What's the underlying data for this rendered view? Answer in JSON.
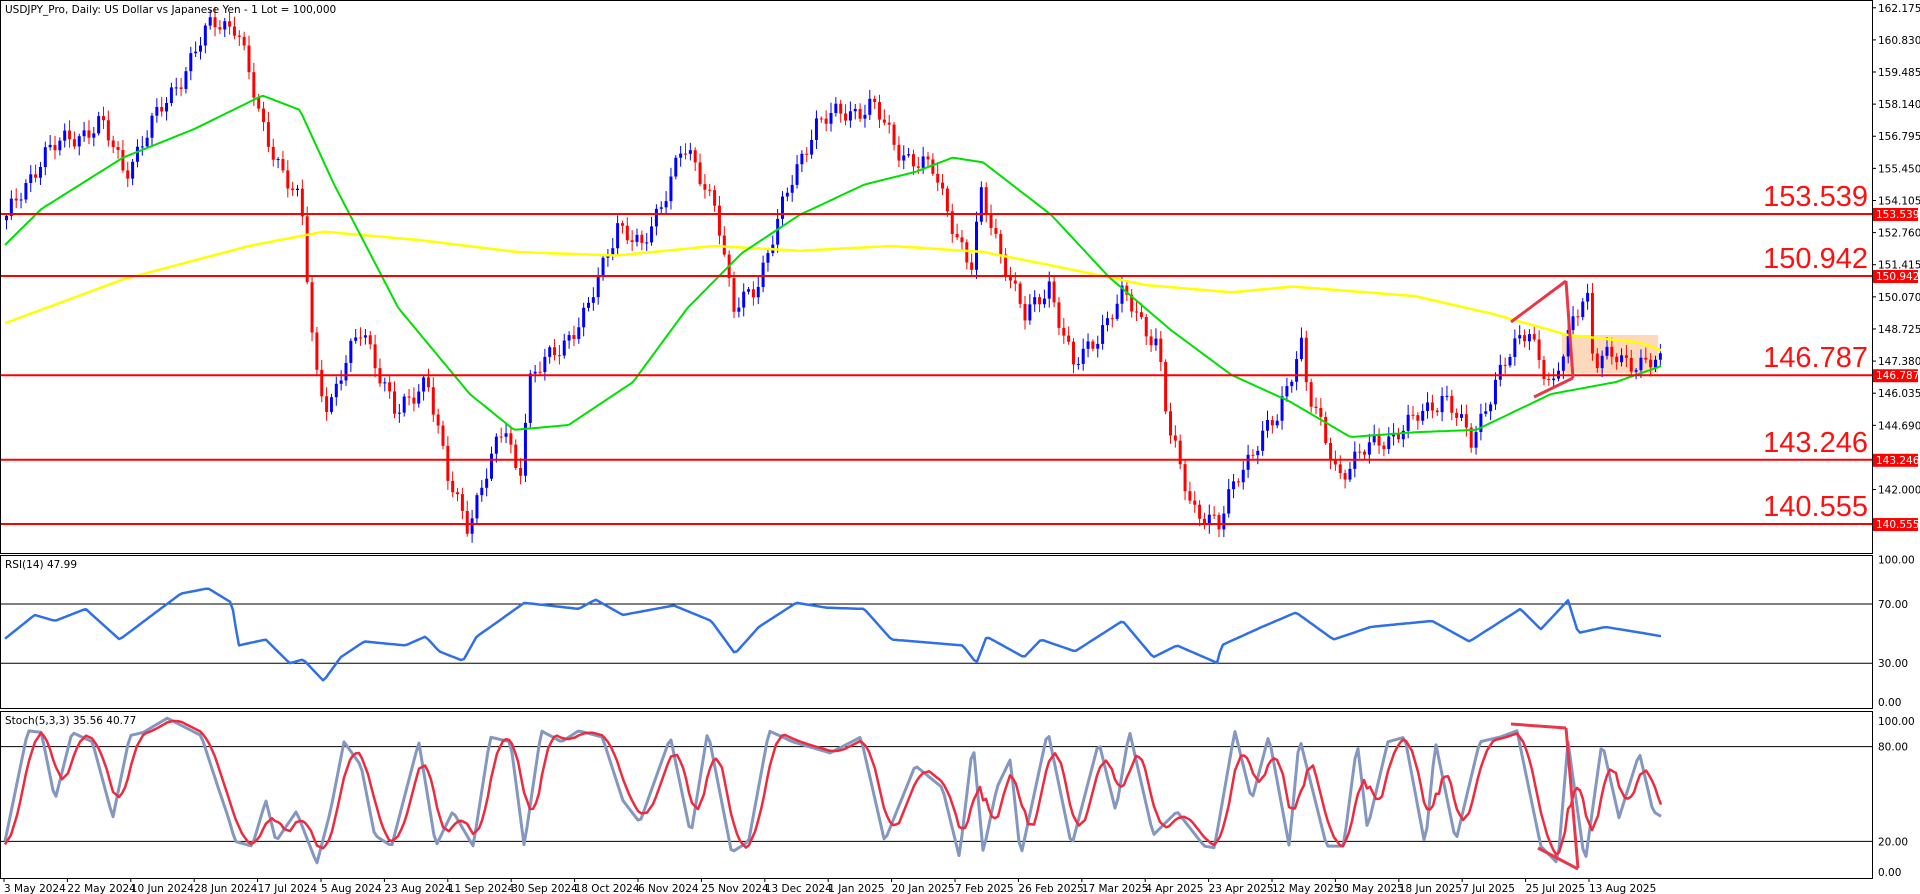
{
  "window": {
    "title": "USDJPY_Pro, Daily:  US Dollar vs Japanese Yen - 1 Lot = 100,000"
  },
  "colors": {
    "bull": "#0000ff",
    "bear": "#ff0000",
    "ma_fast": "#00e000",
    "ma_slow": "#ffff00",
    "rsi": "#2f6fe8",
    "stoch_main": "#8497c0",
    "stoch_signal": "#ee2a3f",
    "levels": "#ff0000",
    "zone": "#fcd2b0"
  },
  "chart_data": [
    {
      "type": "candlestick",
      "symbol": "USDJPY_Pro",
      "timeframe": "Daily",
      "y_ticks": [
        "162.175",
        "160.830",
        "159.485",
        "158.140",
        "156.795",
        "155.450",
        "154.105",
        "152.760",
        "151.415",
        "150.070",
        "148.725",
        "147.380",
        "146.035",
        "144.690",
        "142.000"
      ],
      "ylim": [
        139.4,
        162.5
      ],
      "close_path": [
        [
          "2024-05-03",
          153.2
        ],
        [
          "2024-05-14",
          156.06
        ],
        [
          "2024-05-31",
          157.35
        ],
        [
          "2024-06-07",
          155.3
        ],
        [
          "2024-06-24",
          159.4
        ],
        [
          "2024-07-03",
          161.57
        ],
        [
          "2024-07-10",
          161.47
        ],
        [
          "2024-07-17",
          157.35
        ],
        [
          "2024-07-29",
          153.75
        ],
        [
          "2024-08-02",
          147.05
        ],
        [
          "2024-08-06",
          145.5
        ],
        [
          "2024-08-16",
          148.85
        ],
        [
          "2024-08-26",
          145.0
        ],
        [
          "2024-09-04",
          146.8
        ],
        [
          "2024-09-10",
          142.4
        ],
        [
          "2024-09-16",
          140.6
        ],
        [
          "2024-09-27",
          144.7
        ],
        [
          "2024-10-01",
          142.4
        ],
        [
          "2024-10-04",
          146.5
        ],
        [
          "2024-10-21",
          149.35
        ],
        [
          "2024-10-30",
          153.2
        ],
        [
          "2024-11-06",
          151.95
        ],
        [
          "2024-11-18",
          156.3
        ],
        [
          "2024-11-28",
          154.0
        ],
        [
          "2024-12-03",
          149.35
        ],
        [
          "2024-12-10",
          150.65
        ],
        [
          "2024-12-20",
          154.77
        ],
        [
          "2024-12-27",
          157.35
        ],
        [
          "2025-01-13",
          158.12
        ],
        [
          "2025-01-20",
          156.3
        ],
        [
          "2025-01-31",
          155.28
        ],
        [
          "2025-02-11",
          151.16
        ],
        [
          "2025-02-14",
          154.25
        ],
        [
          "2025-02-27",
          149.1
        ],
        [
          "2025-03-06",
          150.65
        ],
        [
          "2025-03-13",
          147.05
        ],
        [
          "2025-03-28",
          150.13
        ],
        [
          "2025-04-07",
          148.07
        ],
        [
          "2025-04-10",
          144.46
        ],
        [
          "2025-04-17",
          141.37
        ],
        [
          "2025-04-25",
          140.35
        ],
        [
          "2025-04-30",
          142.66
        ],
        [
          "2025-05-12",
          144.98
        ],
        [
          "2025-05-19",
          148.32
        ],
        [
          "2025-05-21",
          146.0
        ],
        [
          "2025-05-30",
          142.66
        ],
        [
          "2025-06-10",
          143.95
        ],
        [
          "2025-06-20",
          144.7
        ],
        [
          "2025-06-30",
          146.0
        ],
        [
          "2025-07-08",
          143.95
        ],
        [
          "2025-07-15",
          146.5
        ],
        [
          "2025-07-25",
          148.85
        ],
        [
          "2025-08-01",
          146.0
        ],
        [
          "2025-08-07",
          149.1
        ],
        [
          "2025-08-11",
          150.65
        ],
        [
          "2025-08-13",
          147.3
        ],
        [
          "2025-08-20",
          147.55
        ],
        [
          "2025-08-27",
          147.3
        ],
        [
          "2025-09-03",
          147.19
        ]
      ],
      "ma_fast": [
        [
          "2024-05-03",
          152.2
        ],
        [
          "2024-05-14",
          153.75
        ],
        [
          "2024-06-07",
          155.9
        ],
        [
          "2024-06-28",
          157.1
        ],
        [
          "2024-07-18",
          158.5
        ],
        [
          "2024-07-29",
          157.9
        ],
        [
          "2024-08-08",
          154.8
        ],
        [
          "2024-08-27",
          149.6
        ],
        [
          "2024-09-17",
          146.0
        ],
        [
          "2024-09-30",
          144.5
        ],
        [
          "2024-10-16",
          144.7
        ],
        [
          "2024-11-04",
          146.5
        ],
        [
          "2024-11-20",
          149.6
        ],
        [
          "2024-12-06",
          151.9
        ],
        [
          "2024-12-23",
          153.5
        ],
        [
          "2025-01-11",
          154.77
        ],
        [
          "2025-01-26",
          155.3
        ],
        [
          "2025-02-06",
          155.9
        ],
        [
          "2025-02-15",
          155.7
        ],
        [
          "2025-03-07",
          153.5
        ],
        [
          "2025-03-24",
          150.9
        ],
        [
          "2025-04-11",
          148.7
        ],
        [
          "2025-04-29",
          146.8
        ],
        [
          "2025-05-16",
          145.7
        ],
        [
          "2025-06-03",
          144.2
        ],
        [
          "2025-06-22",
          144.4
        ],
        [
          "2025-07-10",
          144.5
        ],
        [
          "2025-08-01",
          146.0
        ],
        [
          "2025-08-20",
          146.5
        ],
        [
          "2025-09-03",
          147.2
        ]
      ],
      "ma_slow": [
        [
          "2024-05-03",
          148.95
        ],
        [
          "2024-06-07",
          150.8
        ],
        [
          "2024-07-14",
          152.2
        ],
        [
          "2024-08-05",
          152.8
        ],
        [
          "2024-09-02",
          152.45
        ],
        [
          "2024-10-01",
          151.95
        ],
        [
          "2024-10-30",
          151.8
        ],
        [
          "2024-11-28",
          152.2
        ],
        [
          "2024-12-23",
          152.0
        ],
        [
          "2025-01-19",
          152.2
        ],
        [
          "2025-02-15",
          151.95
        ],
        [
          "2025-03-10",
          151.3
        ],
        [
          "2025-04-04",
          150.56
        ],
        [
          "2025-04-29",
          150.26
        ],
        [
          "2025-05-17",
          150.5
        ],
        [
          "2025-06-22",
          150.1
        ],
        [
          "2025-07-15",
          149.35
        ],
        [
          "2025-08-06",
          148.47
        ],
        [
          "2025-08-27",
          148.16
        ],
        [
          "2025-09-03",
          147.8
        ]
      ],
      "levels": [
        {
          "price": "153.539",
          "label": "153.539"
        },
        {
          "price": "150.942",
          "label": "150.942"
        },
        {
          "price": "146.787",
          "label": "146.787"
        },
        {
          "price": "143.246",
          "label": "143.246"
        },
        {
          "price": "140.555",
          "label": "140.555"
        }
      ]
    },
    {
      "type": "line",
      "label": "RSI(14) 47.99",
      "y_ticks": [
        "100.00",
        "70.00",
        "30.00",
        "0.00"
      ],
      "levels": [
        70,
        30
      ],
      "ylim": [
        0,
        100
      ],
      "values": [
        [
          "2024-05-03",
          46
        ],
        [
          "2024-05-12",
          62.6
        ],
        [
          "2024-05-18",
          58.6
        ],
        [
          "2024-05-27",
          66.7
        ],
        [
          "2024-06-06",
          46
        ],
        [
          "2024-06-18",
          66.7
        ],
        [
          "2024-06-24",
          77
        ],
        [
          "2024-07-02",
          80.6
        ],
        [
          "2024-07-09",
          70.8
        ],
        [
          "2024-07-11",
          42
        ],
        [
          "2024-07-19",
          46
        ],
        [
          "2024-07-26",
          30
        ],
        [
          "2024-07-30",
          32.5
        ],
        [
          "2024-08-05",
          18
        ],
        [
          "2024-08-10",
          34
        ],
        [
          "2024-08-17",
          44.7
        ],
        [
          "2024-08-29",
          42
        ],
        [
          "2024-09-04",
          48
        ],
        [
          "2024-09-08",
          38
        ],
        [
          "2024-09-15",
          31.6
        ],
        [
          "2024-09-19",
          48
        ],
        [
          "2024-09-24",
          56
        ],
        [
          "2024-10-03",
          70.8
        ],
        [
          "2024-10-19",
          66.7
        ],
        [
          "2024-10-24",
          73
        ],
        [
          "2024-11-01",
          62.6
        ],
        [
          "2024-11-16",
          69
        ],
        [
          "2024-11-27",
          58.6
        ],
        [
          "2024-12-04",
          36.5
        ],
        [
          "2024-12-11",
          54.5
        ],
        [
          "2024-12-22",
          70.8
        ],
        [
          "2024-12-31",
          67.5
        ],
        [
          "2025-01-11",
          66.7
        ],
        [
          "2025-01-19",
          46
        ],
        [
          "2025-02-09",
          42
        ],
        [
          "2025-02-13",
          30
        ],
        [
          "2025-02-16",
          48
        ],
        [
          "2025-02-27",
          34
        ],
        [
          "2025-03-04",
          46
        ],
        [
          "2025-03-14",
          38
        ],
        [
          "2025-03-28",
          58.6
        ],
        [
          "2025-04-06",
          34
        ],
        [
          "2025-04-13",
          42
        ],
        [
          "2025-04-25",
          30
        ],
        [
          "2025-04-26",
          42
        ],
        [
          "2025-05-08",
          54.5
        ],
        [
          "2025-05-18",
          64.3
        ],
        [
          "2025-05-29",
          46
        ],
        [
          "2025-06-09",
          54.5
        ],
        [
          "2025-06-27",
          58.6
        ],
        [
          "2025-07-08",
          44.7
        ],
        [
          "2025-07-23",
          66.7
        ],
        [
          "2025-07-29",
          52.9
        ],
        [
          "2025-08-06",
          72.5
        ],
        [
          "2025-08-09",
          50.4
        ],
        [
          "2025-08-17",
          54.5
        ],
        [
          "2025-08-28",
          50.4
        ],
        [
          "2025-09-03",
          48
        ]
      ]
    },
    {
      "type": "line",
      "label": "Stoch(5,3,3) 35.56 40.77",
      "y_ticks": [
        "100.00",
        "80.00",
        "20.00",
        "0.00"
      ],
      "levels": [
        80,
        20
      ],
      "ylim": [
        0,
        100
      ],
      "main": [
        [
          "2024-05-03",
          17
        ],
        [
          "2024-05-10",
          90
        ],
        [
          "2024-05-14",
          89
        ],
        [
          "2024-05-18",
          46
        ],
        [
          "2024-05-23",
          89
        ],
        [
          "2024-05-29",
          83
        ],
        [
          "2024-06-04",
          35
        ],
        [
          "2024-06-09",
          87
        ],
        [
          "2024-06-13",
          89
        ],
        [
          "2024-06-20",
          98
        ],
        [
          "2024-06-30",
          87
        ],
        [
          "2024-07-05",
          54
        ],
        [
          "2024-07-08",
          35
        ],
        [
          "2024-07-10",
          20
        ],
        [
          "2024-07-15",
          17
        ],
        [
          "2024-07-19",
          46
        ],
        [
          "2024-07-22",
          20
        ],
        [
          "2024-07-28",
          39
        ],
        [
          "2024-08-03",
          6
        ],
        [
          "2024-08-07",
          39
        ],
        [
          "2024-08-11",
          83
        ],
        [
          "2024-08-16",
          68
        ],
        [
          "2024-08-20",
          24
        ],
        [
          "2024-08-25",
          17
        ],
        [
          "2024-09-02",
          83
        ],
        [
          "2024-09-07",
          17
        ],
        [
          "2024-09-12",
          39
        ],
        [
          "2024-09-18",
          17
        ],
        [
          "2024-09-23",
          86
        ],
        [
          "2024-09-29",
          83
        ],
        [
          "2024-10-03",
          17
        ],
        [
          "2024-10-08",
          90
        ],
        [
          "2024-10-14",
          83
        ],
        [
          "2024-10-19",
          90
        ],
        [
          "2024-10-26",
          86
        ],
        [
          "2024-11-01",
          46
        ],
        [
          "2024-11-06",
          32
        ],
        [
          "2024-11-15",
          86
        ],
        [
          "2024-11-21",
          24
        ],
        [
          "2024-11-26",
          90
        ],
        [
          "2024-12-03",
          13
        ],
        [
          "2024-12-08",
          20
        ],
        [
          "2024-12-14",
          90
        ],
        [
          "2024-12-21",
          83
        ],
        [
          "2025-01-01",
          76
        ],
        [
          "2025-01-10",
          86
        ],
        [
          "2025-01-17",
          20
        ],
        [
          "2025-01-26",
          68
        ],
        [
          "2025-02-03",
          54
        ],
        [
          "2025-02-08",
          10
        ],
        [
          "2025-02-12",
          83
        ],
        [
          "2025-02-15",
          13
        ],
        [
          "2025-02-19",
          54
        ],
        [
          "2025-02-23",
          72
        ],
        [
          "2025-02-26",
          10
        ],
        [
          "2025-03-06",
          90
        ],
        [
          "2025-03-13",
          17
        ],
        [
          "2025-03-21",
          83
        ],
        [
          "2025-03-26",
          39
        ],
        [
          "2025-03-30",
          90
        ],
        [
          "2025-04-06",
          24
        ],
        [
          "2025-04-13",
          39
        ],
        [
          "2025-04-21",
          17
        ],
        [
          "2025-04-24",
          16
        ],
        [
          "2025-04-30",
          90
        ],
        [
          "2025-05-05",
          46
        ],
        [
          "2025-05-10",
          87
        ],
        [
          "2025-05-16",
          17
        ],
        [
          "2025-05-19",
          86
        ],
        [
          "2025-05-27",
          17
        ],
        [
          "2025-06-01",
          17
        ],
        [
          "2025-06-05",
          83
        ],
        [
          "2025-06-08",
          28
        ],
        [
          "2025-06-14",
          83
        ],
        [
          "2025-06-19",
          86
        ],
        [
          "2025-06-25",
          17
        ],
        [
          "2025-06-28",
          83
        ],
        [
          "2025-07-04",
          20
        ],
        [
          "2025-07-11",
          83
        ],
        [
          "2025-07-17",
          86
        ],
        [
          "2025-07-22",
          90
        ],
        [
          "2025-07-29",
          17
        ],
        [
          "2025-08-03",
          6
        ],
        [
          "2025-08-06",
          83
        ],
        [
          "2025-08-11",
          6
        ],
        [
          "2025-08-16",
          83
        ],
        [
          "2025-08-21",
          35
        ],
        [
          "2025-08-27",
          76
        ],
        [
          "2025-08-31",
          39
        ],
        [
          "2025-09-03",
          35
        ]
      ]
    }
  ],
  "x_axis": {
    "ticks": [
      "3 May 2024",
      "22 May 2024",
      "10 Jun 2024",
      "28 Jun 2024",
      "17 Jul 2024",
      "5 Aug 2024",
      "23 Aug 2024",
      "11 Sep 2024",
      "30 Sep 2024",
      "18 Oct 2024",
      "6 Nov 2024",
      "25 Nov 2024",
      "13 Dec 2024",
      "1 Jan 2025",
      "20 Jan 2025",
      "7 Feb 2025",
      "26 Feb 2025",
      "17 Mar 2025",
      "4 Apr 2025",
      "23 Apr 2025",
      "12 May 2025",
      "30 May 2025",
      "18 Jun 2025",
      "7 Jul 2025",
      "25 Jul 2025",
      "13 Aug 2025"
    ]
  }
}
